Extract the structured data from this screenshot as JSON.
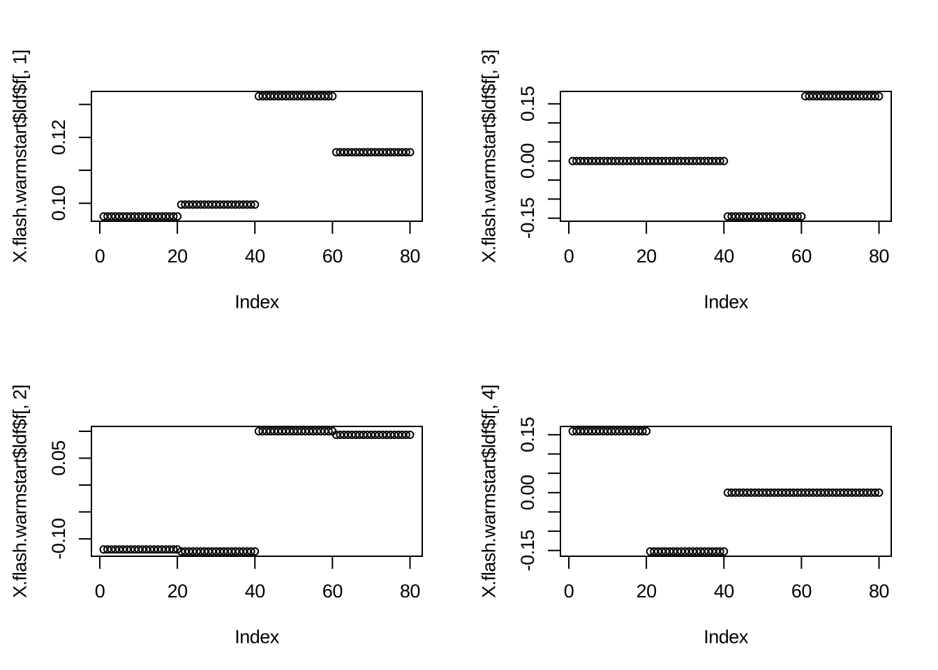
{
  "figure": {
    "background": "#ffffff",
    "foreground": "#000000",
    "layout": "2x2-grid",
    "marker": "open-circle",
    "points_per_panel": 80
  },
  "chart_data": [
    {
      "type": "scatter",
      "position": "top-left",
      "xlabel": "Index",
      "ylabel": "X.flash.warmstart$ldf$f[, 1]",
      "x_range": [
        1,
        80
      ],
      "x_ticks": [
        {
          "value": 0,
          "label": "0"
        },
        {
          "value": 20,
          "label": "20"
        },
        {
          "value": 40,
          "label": "40"
        },
        {
          "value": 60,
          "label": "60"
        },
        {
          "value": 80,
          "label": "80"
        }
      ],
      "y_ticks": [
        {
          "value": 0.13,
          "label": ""
        },
        {
          "value": 0.12,
          "label": "0.12"
        },
        {
          "value": 0.11,
          "label": ""
        },
        {
          "value": 0.1,
          "label": "0.10"
        }
      ],
      "segments": [
        {
          "from": 1,
          "to": 20,
          "value": 0.096
        },
        {
          "from": 21,
          "to": 40,
          "value": 0.0996
        },
        {
          "from": 41,
          "to": 60,
          "value": 0.1325
        },
        {
          "from": 61,
          "to": 80,
          "value": 0.1155
        }
      ]
    },
    {
      "type": "scatter",
      "position": "top-right",
      "xlabel": "Index",
      "ylabel": "X.flash.warmstart$ldf$f[, 3]",
      "x_range": [
        1,
        80
      ],
      "x_ticks": [
        {
          "value": 0,
          "label": "0"
        },
        {
          "value": 20,
          "label": "20"
        },
        {
          "value": 40,
          "label": "40"
        },
        {
          "value": 60,
          "label": "60"
        },
        {
          "value": 80,
          "label": "80"
        }
      ],
      "y_ticks": [
        {
          "value": 0.15,
          "label": "0.15"
        },
        {
          "value": 0.1,
          "label": ""
        },
        {
          "value": 0.05,
          "label": ""
        },
        {
          "value": 0.0,
          "label": "0.00"
        },
        {
          "value": -0.05,
          "label": ""
        },
        {
          "value": -0.1,
          "label": ""
        },
        {
          "value": -0.15,
          "label": "-0.15"
        }
      ],
      "segments": [
        {
          "from": 1,
          "to": 20,
          "value": 0.0
        },
        {
          "from": 21,
          "to": 40,
          "value": 0.0
        },
        {
          "from": 41,
          "to": 60,
          "value": -0.1455
        },
        {
          "from": 61,
          "to": 80,
          "value": 0.17
        }
      ]
    },
    {
      "type": "scatter",
      "position": "bottom-left",
      "xlabel": "Index",
      "ylabel": "X.flash.warmstart$ldf$f[, 2]",
      "x_range": [
        1,
        80
      ],
      "x_ticks": [
        {
          "value": 0,
          "label": "0"
        },
        {
          "value": 20,
          "label": "20"
        },
        {
          "value": 40,
          "label": "40"
        },
        {
          "value": 60,
          "label": "60"
        },
        {
          "value": 80,
          "label": "80"
        }
      ],
      "y_ticks": [
        {
          "value": 0.1,
          "label": ""
        },
        {
          "value": 0.05,
          "label": "0.05"
        },
        {
          "value": 0.0,
          "label": ""
        },
        {
          "value": -0.05,
          "label": ""
        },
        {
          "value": -0.1,
          "label": "-0.10"
        }
      ],
      "segments": [
        {
          "from": 1,
          "to": 20,
          "value": -0.1197
        },
        {
          "from": 21,
          "to": 40,
          "value": -0.1234
        },
        {
          "from": 41,
          "to": 60,
          "value": 0.1001
        },
        {
          "from": 61,
          "to": 80,
          "value": 0.0934
        }
      ]
    },
    {
      "type": "scatter",
      "position": "bottom-right",
      "xlabel": "Index",
      "ylabel": "X.flash.warmstart$ldf$f[, 4]",
      "x_range": [
        1,
        80
      ],
      "x_ticks": [
        {
          "value": 0,
          "label": "0"
        },
        {
          "value": 20,
          "label": "20"
        },
        {
          "value": 40,
          "label": "40"
        },
        {
          "value": 60,
          "label": "60"
        },
        {
          "value": 80,
          "label": "80"
        }
      ],
      "y_ticks": [
        {
          "value": 0.15,
          "label": "0.15"
        },
        {
          "value": 0.1,
          "label": ""
        },
        {
          "value": 0.05,
          "label": ""
        },
        {
          "value": 0.0,
          "label": "0.00"
        },
        {
          "value": -0.05,
          "label": ""
        },
        {
          "value": -0.1,
          "label": ""
        },
        {
          "value": -0.15,
          "label": "-0.15"
        }
      ],
      "segments": [
        {
          "from": 1,
          "to": 20,
          "value": 0.159
        },
        {
          "from": 21,
          "to": 40,
          "value": -0.1524
        },
        {
          "from": 41,
          "to": 60,
          "value": 0.0
        },
        {
          "from": 61,
          "to": 80,
          "value": 0.0
        }
      ]
    }
  ]
}
